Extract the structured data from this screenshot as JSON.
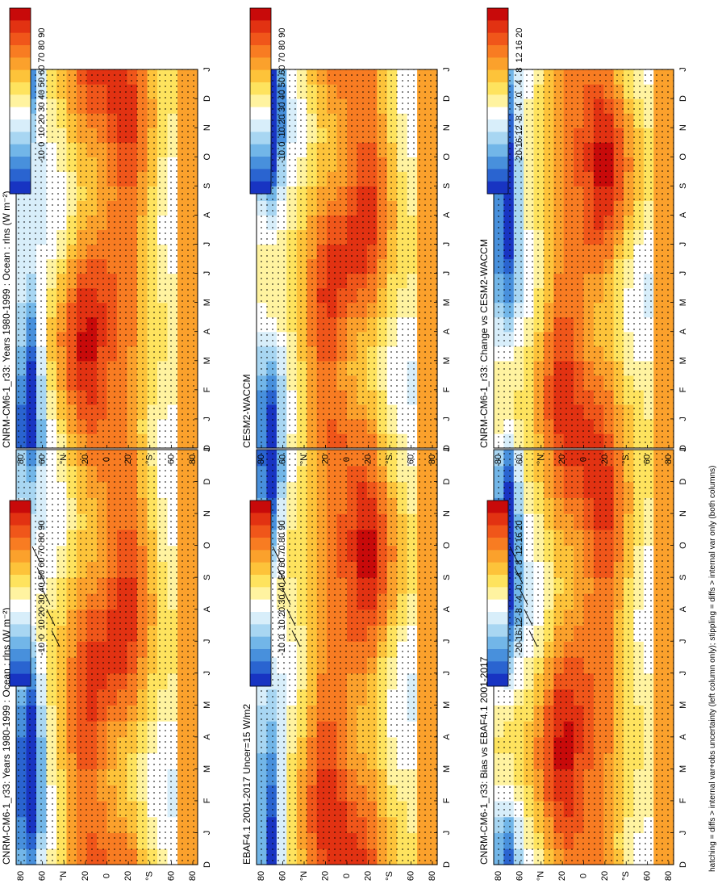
{
  "caption": "hatching = diffs > internal var+obs uncertainty (left column only); stippling = diffs > internal var only (both columns)",
  "colorbars": {
    "absolute": {
      "labels": [
        "90",
        "80",
        "70",
        "60",
        "50",
        "40",
        "30",
        "20",
        "10",
        "0",
        "-10"
      ],
      "colors": [
        "#c80a0a",
        "#e23212",
        "#f0561a",
        "#f87c22",
        "#fba12c",
        "#fdc33a",
        "#fee35e",
        "#fff3a0",
        "#ffffff",
        "#d8eefa",
        "#a8d6f2",
        "#72b6e8",
        "#4890dc",
        "#2a64d0",
        "#1834c2"
      ]
    },
    "difference": {
      "labels": [
        "20",
        "16",
        "12",
        "8",
        "4",
        "0",
        "-4",
        "-8",
        "-12",
        "-16",
        "-20"
      ],
      "colors": [
        "#c80a0a",
        "#e23212",
        "#f0561a",
        "#f87c22",
        "#fba12c",
        "#fdc33a",
        "#fee35e",
        "#fff3a0",
        "#ffffff",
        "#d8eefa",
        "#a8d6f2",
        "#72b6e8",
        "#4890dc",
        "#2a64d0",
        "#1834c2"
      ]
    }
  },
  "chart_data": [
    {
      "id": "left-top",
      "type": "heatmap",
      "title": "CNRM-CM6-1_r33: Years 1980-1999 : Ocean : rlns (W m⁻²)",
      "months": [
        "D",
        "J",
        "F",
        "M",
        "A",
        "M",
        "J",
        "J",
        "A",
        "S",
        "O",
        "N",
        "D",
        "J"
      ],
      "lat_ticks": [
        "80",
        "60",
        "°N",
        "20",
        "0",
        "20",
        "°S",
        "60",
        "80"
      ],
      "lat": [
        80,
        60,
        40,
        20,
        0,
        -20,
        -40,
        -60,
        -80
      ],
      "units": "W m-2",
      "colorbar": "absolute",
      "hatching": true,
      "stippling": true
    },
    {
      "id": "right-top",
      "type": "heatmap",
      "title": "CNRM-CM6-1_r33: Years 1980-1999 : Ocean : rlns (W m⁻²)",
      "months": [
        "D",
        "J",
        "F",
        "M",
        "A",
        "M",
        "J",
        "J",
        "A",
        "S",
        "O",
        "N",
        "D",
        "J"
      ],
      "lat_ticks": [
        "80",
        "60",
        "°N",
        "20",
        "0",
        "20",
        "°S",
        "60",
        "80"
      ],
      "lat": [
        80,
        60,
        40,
        20,
        0,
        -20,
        -40,
        -60,
        -80
      ],
      "units": "W m-2",
      "colorbar": "absolute",
      "hatching": false,
      "stippling": true
    },
    {
      "id": "left-middle",
      "type": "heatmap",
      "title": "EBAF4.1 2001-2017 Uncer=15 W/m2",
      "months": [
        "D",
        "J",
        "F",
        "M",
        "A",
        "M",
        "J",
        "J",
        "A",
        "S",
        "O",
        "N",
        "D",
        "J"
      ],
      "lat_ticks": [
        "80",
        "60",
        "°N",
        "20",
        "0",
        "20",
        "°S",
        "60",
        "80"
      ],
      "lat": [
        80,
        60,
        40,
        20,
        0,
        -20,
        -40,
        -60,
        -80
      ],
      "colorbar": "absolute",
      "hatching": true,
      "stippling": true
    },
    {
      "id": "right-middle",
      "type": "heatmap",
      "title": "CESM2-WACCM",
      "months": [
        "D",
        "J",
        "F",
        "M",
        "A",
        "M",
        "J",
        "J",
        "A",
        "S",
        "O",
        "N",
        "D",
        "J"
      ],
      "lat_ticks": [
        "80",
        "60",
        "°N",
        "20",
        "0",
        "20",
        "°S",
        "60",
        "80"
      ],
      "lat": [
        80,
        60,
        40,
        20,
        0,
        -20,
        -40,
        -60,
        -80
      ],
      "colorbar": "absolute",
      "hatching": false,
      "stippling": true
    },
    {
      "id": "left-bottom",
      "type": "heatmap",
      "title": "CNRM-CM6-1_r33: Bias vs EBAF4.1 2001-2017",
      "months": [
        "D",
        "J",
        "F",
        "M",
        "A",
        "M",
        "J",
        "J",
        "A",
        "S",
        "O",
        "N",
        "D",
        "J"
      ],
      "lat_ticks": [
        "80",
        "60",
        "°N",
        "20",
        "0",
        "20",
        "°S",
        "60",
        "80"
      ],
      "lat": [
        80,
        60,
        40,
        20,
        0,
        -20,
        -40,
        -60,
        -80
      ],
      "colorbar": "difference",
      "hatching": true,
      "stippling": true
    },
    {
      "id": "right-bottom",
      "type": "heatmap",
      "title": "CNRM-CM6-1_r33: Change vs CESM2-WACCM",
      "months": [
        "D",
        "J",
        "F",
        "M",
        "A",
        "M",
        "J",
        "J",
        "A",
        "S",
        "O",
        "N",
        "D",
        "J"
      ],
      "lat_ticks": [
        "80",
        "60",
        "°N",
        "20",
        "0",
        "20",
        "°S",
        "60",
        "80"
      ],
      "lat": [
        80,
        60,
        40,
        20,
        0,
        -20,
        -40,
        -60,
        -80
      ],
      "colorbar": "difference",
      "hatching": false,
      "stippling": true
    }
  ]
}
